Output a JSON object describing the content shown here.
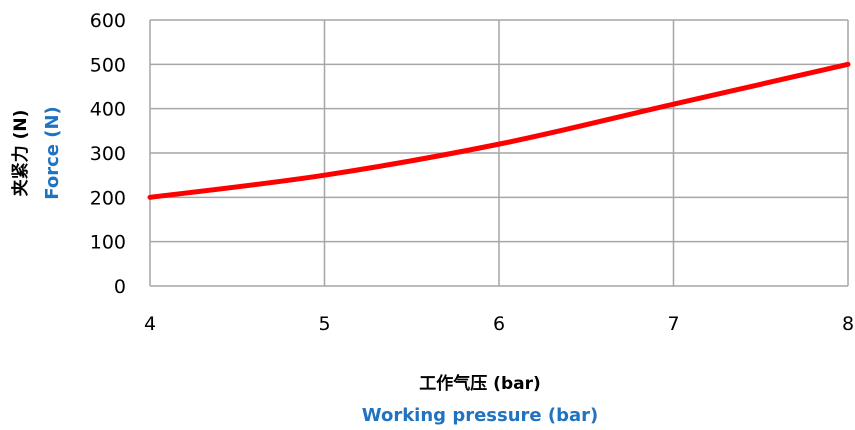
{
  "chart_data": {
    "type": "line",
    "title": "",
    "x": [
      4,
      5,
      6,
      7,
      8
    ],
    "series": [
      {
        "values": [
          200,
          250,
          320,
          410,
          500
        ]
      }
    ],
    "xticks": [
      "4",
      "5",
      "6",
      "7",
      "8"
    ],
    "yticks": [
      "0",
      "100",
      "200",
      "300",
      "400",
      "500",
      "600"
    ],
    "xlim": [
      4,
      8
    ],
    "ylim": [
      0,
      600
    ],
    "xlabel_cn": "工作气压 (bar)",
    "xlabel_en": "Working pressure (bar)",
    "ylabel_cn": "夹紧力 (N)",
    "ylabel_en": "Force (N)",
    "grid": true,
    "line_color": "#ff0000",
    "grid_color": "#a6a6a6",
    "en_label_color": "#1f73c0"
  }
}
